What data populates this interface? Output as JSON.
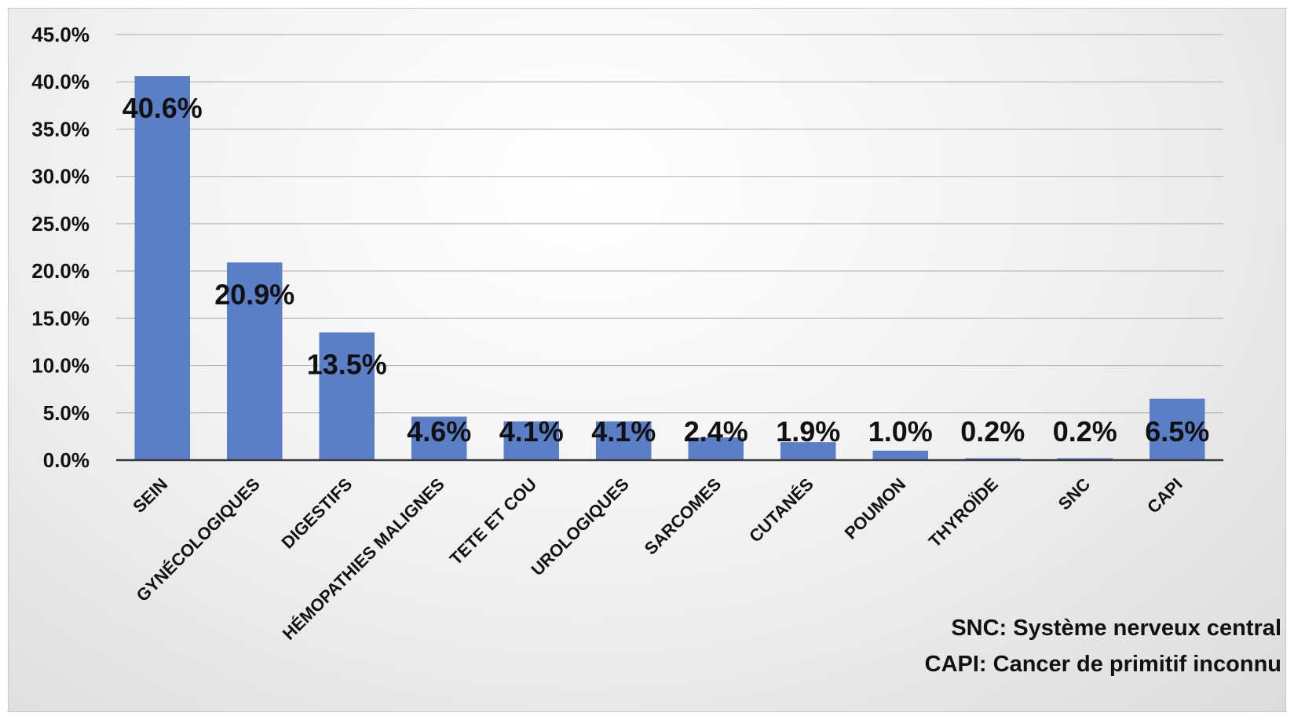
{
  "chart_data": {
    "type": "bar",
    "title": "",
    "xlabel": "",
    "ylabel": "",
    "categories": [
      "SEIN",
      "GYNÉCOLOGIQUES",
      "DIGESTIFS",
      "HÉMOPATHIES MALIGNES",
      "TETE ET COU",
      "UROLOGIQUES",
      "SARCOMES",
      "CUTANÉS",
      "POUMON",
      "THYROÏDE",
      "SNC",
      "CAPI"
    ],
    "values": [
      40.6,
      20.9,
      13.5,
      4.6,
      4.1,
      4.1,
      2.4,
      1.9,
      1.0,
      0.2,
      0.2,
      6.5
    ],
    "data_labels": [
      "40.6%",
      "20.9%",
      "13.5%",
      "4.6%",
      "4.1%",
      "4.1%",
      "2.4%",
      "1.9%",
      "1.0%",
      "0.2%",
      "0.2%",
      "6.5%"
    ],
    "ylim": [
      0,
      45
    ],
    "yticks": [
      "0.0%",
      "5.0%",
      "10.0%",
      "15.0%",
      "20.0%",
      "25.0%",
      "30.0%",
      "35.0%",
      "40.0%",
      "45.0%"
    ],
    "grid": true,
    "bar_color": "#5b7fc7",
    "gridline_color": "#b8b8b8"
  },
  "notes": {
    "snc": "SNC: Système nerveux central",
    "capi": "CAPI: Cancer de primitif inconnu"
  }
}
